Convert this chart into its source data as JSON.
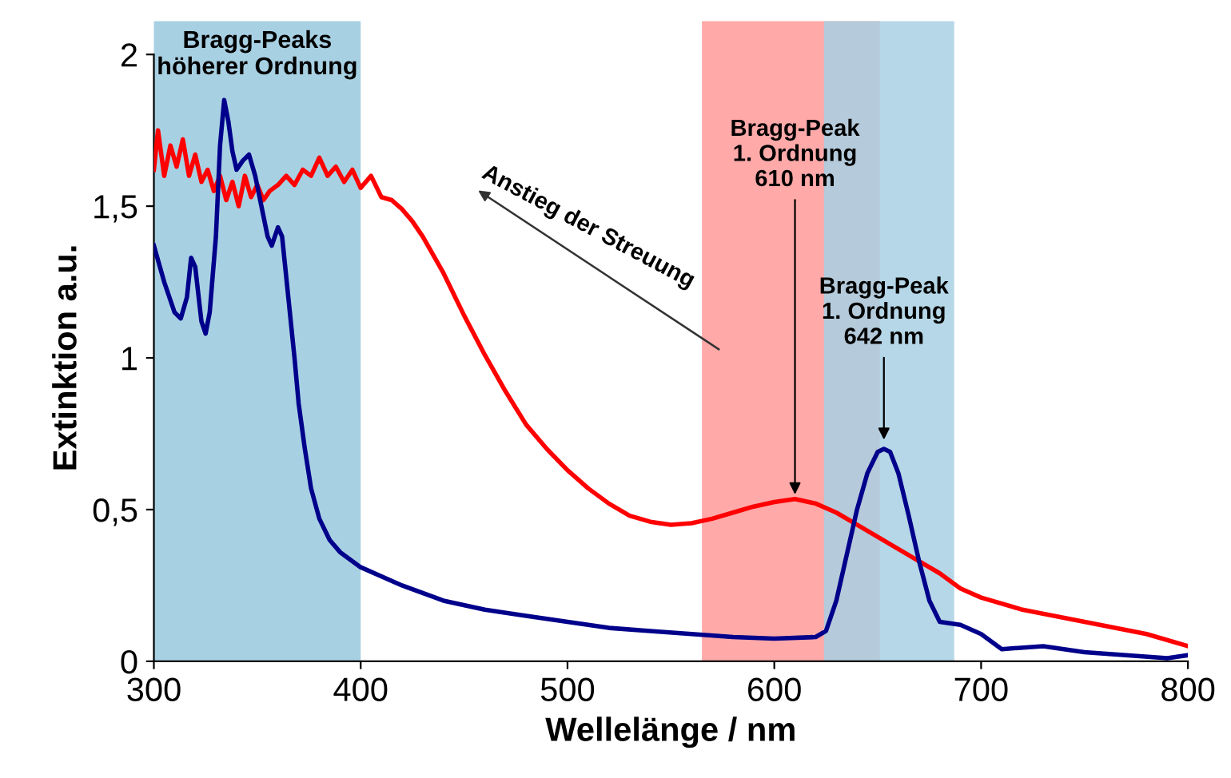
{
  "chart_data": {
    "type": "line",
    "xlabel": "Wellelänge / nm",
    "ylabel": "Extinktion a.u.",
    "xlim": [
      300,
      800
    ],
    "xticks": [
      300,
      400,
      500,
      600,
      700,
      800
    ],
    "ylim": [
      0,
      2
    ],
    "yticks": [
      0,
      {
        "value": 0.5,
        "label": "0,5"
      },
      1,
      {
        "value": 1.5,
        "label": "1,5"
      },
      2
    ],
    "grid": false,
    "legend": false,
    "marker": "none",
    "line_style": "solid",
    "bands": [
      {
        "axis": "x",
        "from": 300,
        "to": 400,
        "label": "Bragg-Peaks\nhöherer Ordnung",
        "color": "#a8d0e3"
      },
      {
        "axis": "x",
        "from": 565,
        "to": 651,
        "color": "#ff9a9a"
      },
      {
        "axis": "x",
        "from": 624,
        "to": 687,
        "color": "#a8d0e3"
      }
    ],
    "annotations": [
      {
        "text": "Bragg-Peak\n1. Ordnung\n610 nm",
        "x": 610,
        "y": 0.53
      },
      {
        "text": "Bragg-Peak\n1. Ordnung\n642 nm",
        "x": 653,
        "y": 0.71
      },
      "Anstieg der Streuung"
    ],
    "series": [
      {
        "color": "#ff0000",
        "x": [
          300,
          302,
          305,
          308,
          311,
          314,
          317,
          320,
          323,
          326,
          329,
          332,
          335,
          338,
          341,
          344,
          347,
          350,
          353,
          356,
          360,
          364,
          368,
          372,
          376,
          380,
          384,
          388,
          392,
          396,
          400,
          405,
          410,
          415,
          420,
          425,
          430,
          440,
          450,
          460,
          470,
          480,
          490,
          500,
          510,
          520,
          530,
          540,
          550,
          560,
          570,
          580,
          590,
          600,
          610,
          620,
          630,
          640,
          650,
          660,
          670,
          680,
          690,
          700,
          720,
          750,
          780,
          800
        ],
        "values": [
          1.62,
          1.75,
          1.6,
          1.7,
          1.63,
          1.72,
          1.6,
          1.67,
          1.58,
          1.62,
          1.55,
          1.6,
          1.52,
          1.58,
          1.5,
          1.6,
          1.53,
          1.57,
          1.52,
          1.55,
          1.57,
          1.6,
          1.57,
          1.62,
          1.6,
          1.66,
          1.6,
          1.63,
          1.58,
          1.62,
          1.56,
          1.6,
          1.53,
          1.52,
          1.49,
          1.45,
          1.4,
          1.28,
          1.14,
          1.01,
          0.89,
          0.78,
          0.7,
          0.63,
          0.57,
          0.52,
          0.48,
          0.46,
          0.45,
          0.455,
          0.47,
          0.49,
          0.51,
          0.525,
          0.535,
          0.52,
          0.49,
          0.45,
          0.41,
          0.37,
          0.33,
          0.29,
          0.24,
          0.21,
          0.17,
          0.13,
          0.09,
          0.05
        ]
      },
      {
        "color": "#00008b",
        "x": [
          300,
          305,
          310,
          313,
          316,
          318,
          320,
          323,
          325,
          327,
          330,
          332,
          334,
          336,
          338,
          340,
          343,
          346,
          349,
          352,
          355,
          357,
          360,
          362,
          365,
          368,
          370,
          373,
          376,
          380,
          385,
          390,
          400,
          420,
          440,
          460,
          480,
          500,
          520,
          540,
          560,
          580,
          600,
          620,
          625,
          630,
          635,
          640,
          645,
          650,
          653,
          656,
          660,
          665,
          670,
          675,
          680,
          690,
          700,
          710,
          730,
          750,
          770,
          790,
          800
        ],
        "values": [
          1.37,
          1.25,
          1.15,
          1.13,
          1.2,
          1.33,
          1.3,
          1.12,
          1.08,
          1.15,
          1.4,
          1.7,
          1.85,
          1.78,
          1.68,
          1.62,
          1.65,
          1.67,
          1.6,
          1.5,
          1.4,
          1.37,
          1.43,
          1.4,
          1.2,
          1.0,
          0.85,
          0.7,
          0.57,
          0.47,
          0.4,
          0.36,
          0.31,
          0.25,
          0.2,
          0.17,
          0.15,
          0.13,
          0.11,
          0.1,
          0.09,
          0.08,
          0.075,
          0.08,
          0.1,
          0.2,
          0.35,
          0.5,
          0.62,
          0.69,
          0.7,
          0.69,
          0.62,
          0.48,
          0.33,
          0.2,
          0.13,
          0.12,
          0.09,
          0.04,
          0.05,
          0.03,
          0.02,
          0.01,
          0.02
        ]
      }
    ]
  }
}
